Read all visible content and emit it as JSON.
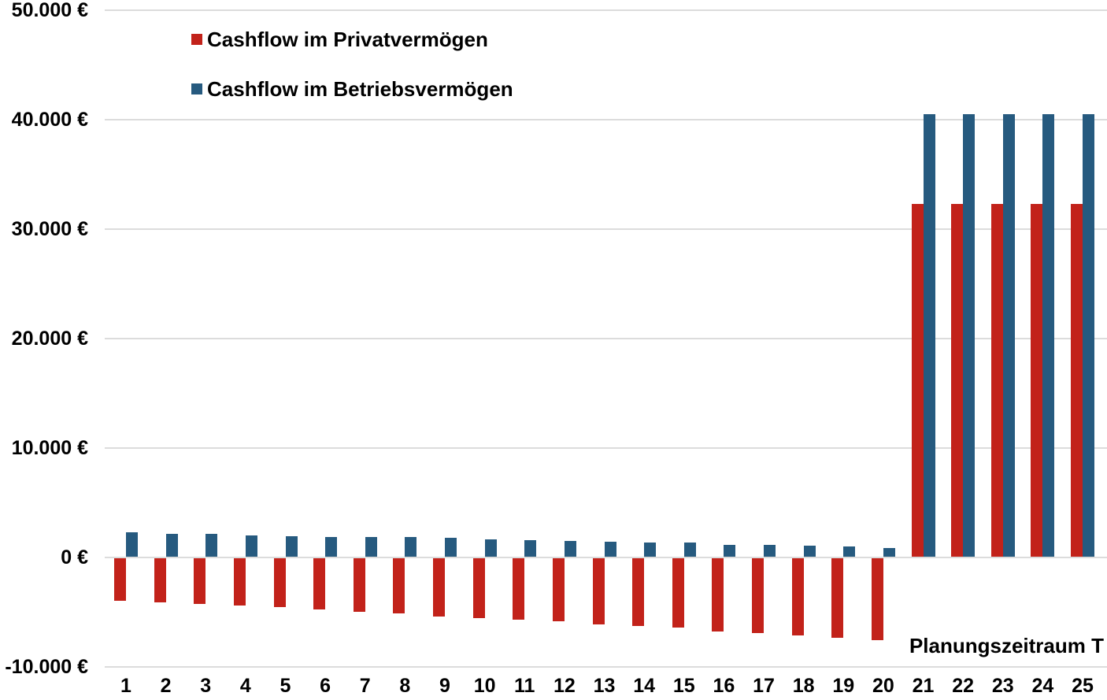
{
  "chart_data": {
    "type": "bar",
    "title": "",
    "xlabel": "Planungszeitraum T",
    "ylabel": "",
    "categories": [
      "1",
      "2",
      "3",
      "4",
      "5",
      "6",
      "7",
      "8",
      "9",
      "10",
      "11",
      "12",
      "13",
      "14",
      "15",
      "16",
      "17",
      "18",
      "19",
      "20",
      "21",
      "22",
      "23",
      "24",
      "25"
    ],
    "series": [
      {
        "name": "Cashflow im Privatvermögen",
        "color": "#c2221a",
        "values": [
          -3900,
          -4050,
          -4200,
          -4350,
          -4500,
          -4700,
          -4900,
          -5050,
          -5350,
          -5500,
          -5650,
          -5800,
          -6050,
          -6200,
          -6350,
          -6750,
          -6900,
          -7100,
          -7300,
          -7550,
          32300,
          32300,
          32300,
          32300,
          32300
        ]
      },
      {
        "name": "Cashflow im Betriebsvermögen",
        "color": "#265a7f",
        "values": [
          2250,
          2100,
          2100,
          1950,
          1900,
          1850,
          1800,
          1800,
          1750,
          1600,
          1550,
          1450,
          1400,
          1350,
          1300,
          1150,
          1100,
          1050,
          1000,
          800,
          40500,
          40500,
          40500,
          40500,
          40500
        ]
      }
    ],
    "y_ticks": [
      {
        "value": 50000,
        "label": "50.000 €"
      },
      {
        "value": 40000,
        "label": "40.000 €"
      },
      {
        "value": 30000,
        "label": "30.000 €"
      },
      {
        "value": 20000,
        "label": "20.000 €"
      },
      {
        "value": 10000,
        "label": "10.000 €"
      },
      {
        "value": 0,
        "label": "0 €"
      },
      {
        "value": -10000,
        "label": "-10.000 €"
      }
    ],
    "ylim": [
      -10000,
      50000
    ],
    "grid": true,
    "legend_position": "top-left",
    "gridline_color": "#dcdcdc",
    "text_color": "#000000"
  }
}
